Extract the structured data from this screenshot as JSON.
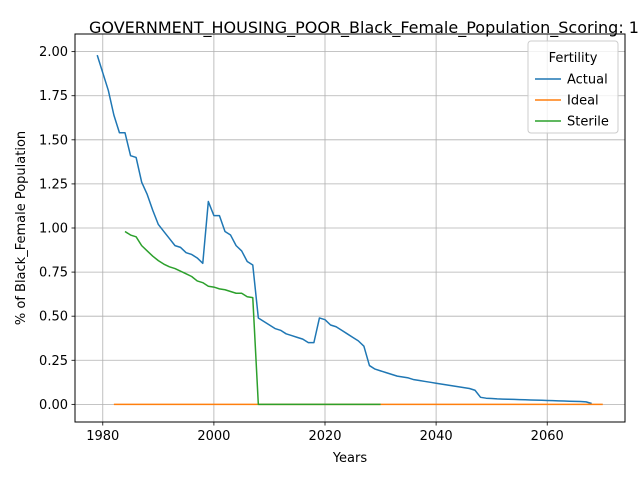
{
  "chart_data": {
    "type": "line",
    "title": "GOVERNMENT_HOUSING_POOR_Black_Female_Population_Scoring: 1",
    "xlabel": "Years",
    "ylabel": "% of Black_Female Population",
    "xlim": [
      1975,
      2074
    ],
    "ylim": [
      -0.1,
      2.1
    ],
    "x_ticks": [
      1980,
      2000,
      2020,
      2040,
      2060
    ],
    "y_ticks": [
      0.0,
      0.25,
      0.5,
      0.75,
      1.0,
      1.25,
      1.5,
      1.75,
      2.0
    ],
    "y_tick_labels": [
      "0.00",
      "0.25",
      "0.50",
      "0.75",
      "1.00",
      "1.25",
      "1.50",
      "1.75",
      "2.00"
    ],
    "grid": true,
    "legend": {
      "title": "Fertility",
      "placement": "top-right"
    },
    "series": [
      {
        "name": "Actual",
        "color": "#1f77b4",
        "x": [
          1979,
          1980,
          1981,
          1982,
          1983,
          1984,
          1985,
          1986,
          1987,
          1988,
          1989,
          1990,
          1991,
          1992,
          1993,
          1994,
          1995,
          1996,
          1997,
          1998,
          1999,
          2000,
          2001,
          2002,
          2003,
          2004,
          2005,
          2006,
          2007,
          2008,
          2009,
          2010,
          2011,
          2012,
          2013,
          2014,
          2015,
          2016,
          2017,
          2018,
          2019,
          2020,
          2021,
          2022,
          2023,
          2024,
          2025,
          2026,
          2027,
          2028,
          2029,
          2030,
          2031,
          2032,
          2033,
          2034,
          2035,
          2036,
          2037,
          2038,
          2039,
          2040,
          2041,
          2042,
          2043,
          2044,
          2045,
          2046,
          2047,
          2048,
          2049,
          2050,
          2051,
          2052,
          2053,
          2054,
          2055,
          2056,
          2057,
          2058,
          2059,
          2060,
          2061,
          2062,
          2063,
          2064,
          2065,
          2066,
          2067,
          2068
        ],
        "values": [
          1.98,
          1.88,
          1.78,
          1.64,
          1.54,
          1.54,
          1.41,
          1.4,
          1.26,
          1.19,
          1.1,
          1.02,
          0.98,
          0.94,
          0.9,
          0.89,
          0.86,
          0.85,
          0.83,
          0.8,
          1.15,
          1.07,
          1.07,
          0.98,
          0.96,
          0.9,
          0.87,
          0.81,
          0.79,
          0.49,
          0.47,
          0.45,
          0.43,
          0.42,
          0.4,
          0.39,
          0.38,
          0.37,
          0.35,
          0.35,
          0.49,
          0.48,
          0.45,
          0.44,
          0.42,
          0.4,
          0.38,
          0.36,
          0.33,
          0.22,
          0.2,
          0.19,
          0.18,
          0.17,
          0.16,
          0.155,
          0.15,
          0.14,
          0.135,
          0.13,
          0.125,
          0.12,
          0.115,
          0.11,
          0.105,
          0.1,
          0.095,
          0.09,
          0.08,
          0.04,
          0.035,
          0.033,
          0.031,
          0.03,
          0.029,
          0.028,
          0.027,
          0.026,
          0.025,
          0.024,
          0.023,
          0.022,
          0.021,
          0.02,
          0.019,
          0.018,
          0.017,
          0.016,
          0.014,
          0.005
        ]
      },
      {
        "name": "Ideal",
        "color": "#ff7f0e",
        "x": [
          1982,
          2070
        ],
        "values": [
          0.0,
          0.0
        ]
      },
      {
        "name": "Sterile",
        "color": "#2ca02c",
        "x": [
          1984,
          1985,
          1986,
          1987,
          1988,
          1989,
          1990,
          1991,
          1992,
          1993,
          1994,
          1995,
          1996,
          1997,
          1998,
          1999,
          2000,
          2001,
          2002,
          2003,
          2004,
          2005,
          2006,
          2007,
          2008,
          2009,
          2010,
          2015,
          2020,
          2025,
          2030
        ],
        "values": [
          0.98,
          0.96,
          0.95,
          0.9,
          0.87,
          0.84,
          0.815,
          0.795,
          0.78,
          0.77,
          0.755,
          0.74,
          0.725,
          0.7,
          0.69,
          0.67,
          0.665,
          0.655,
          0.65,
          0.64,
          0.63,
          0.63,
          0.61,
          0.605,
          0.0,
          0.0,
          0.0,
          0.0,
          0.0,
          0.0,
          0.0
        ]
      }
    ]
  }
}
